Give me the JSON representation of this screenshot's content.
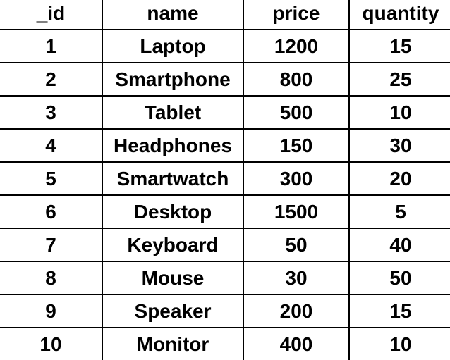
{
  "columns": [
    "_id",
    "name",
    "price",
    "quantity"
  ],
  "rows": [
    [
      "1",
      "Laptop",
      "1200",
      "15"
    ],
    [
      "2",
      "Smartphone",
      "800",
      "25"
    ],
    [
      "3",
      "Tablet",
      "500",
      "10"
    ],
    [
      "4",
      "Headphones",
      "150",
      "30"
    ],
    [
      "5",
      "Smartwatch",
      "300",
      "20"
    ],
    [
      "6",
      "Desktop",
      "1500",
      "5"
    ],
    [
      "7",
      "Keyboard",
      "50",
      "40"
    ],
    [
      "8",
      "Mouse",
      "30",
      "50"
    ],
    [
      "9",
      "Speaker",
      "200",
      "15"
    ],
    [
      "10",
      "Monitor",
      "400",
      "10"
    ]
  ]
}
